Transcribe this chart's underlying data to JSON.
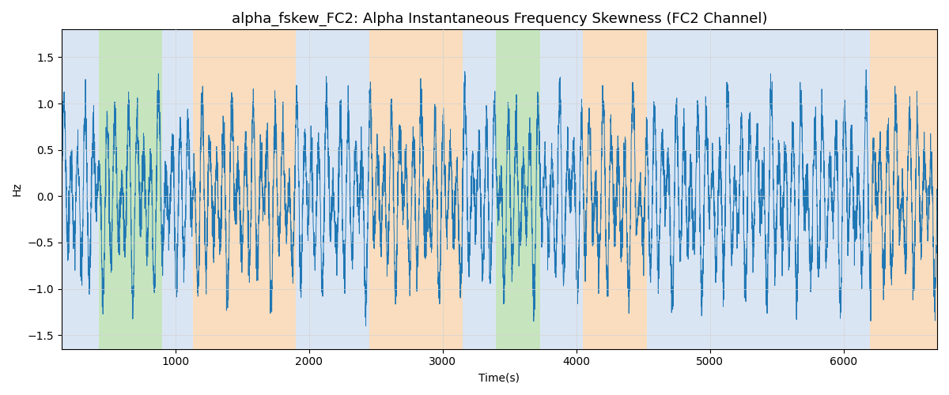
{
  "title": "alpha_fskew_FC2: Alpha Instantaneous Frequency Skewness (FC2 Channel)",
  "xlabel": "Time(s)",
  "ylabel": "Hz",
  "ylim": [
    -1.65,
    1.8
  ],
  "xlim": [
    150,
    6700
  ],
  "line_color": "#1f77b4",
  "line_width": 0.7,
  "background_regions": [
    {
      "xstart": 150,
      "xend": 430,
      "color": "#aec6e8",
      "alpha": 0.45
    },
    {
      "xstart": 430,
      "xend": 900,
      "color": "#98d08a",
      "alpha": 0.55
    },
    {
      "xstart": 900,
      "xend": 1130,
      "color": "#aec6e8",
      "alpha": 0.45
    },
    {
      "xstart": 1130,
      "xend": 1900,
      "color": "#f5c18a",
      "alpha": 0.55
    },
    {
      "xstart": 1900,
      "xend": 2450,
      "color": "#aec6e8",
      "alpha": 0.45
    },
    {
      "xstart": 2450,
      "xend": 3150,
      "color": "#f5c18a",
      "alpha": 0.55
    },
    {
      "xstart": 3150,
      "xend": 3400,
      "color": "#aec6e8",
      "alpha": 0.45
    },
    {
      "xstart": 3400,
      "xend": 3730,
      "color": "#98d08a",
      "alpha": 0.55
    },
    {
      "xstart": 3730,
      "xend": 4050,
      "color": "#aec6e8",
      "alpha": 0.45
    },
    {
      "xstart": 4050,
      "xend": 4530,
      "color": "#f5c18a",
      "alpha": 0.55
    },
    {
      "xstart": 4530,
      "xend": 4800,
      "color": "#aec6e8",
      "alpha": 0.45
    },
    {
      "xstart": 4800,
      "xend": 5900,
      "color": "#aec6e8",
      "alpha": 0.45
    },
    {
      "xstart": 5900,
      "xend": 6200,
      "color": "#aec6e8",
      "alpha": 0.45
    },
    {
      "xstart": 6200,
      "xend": 6700,
      "color": "#f5c18a",
      "alpha": 0.55
    }
  ],
  "seed": 2023,
  "n_points": 6500,
  "figsize": [
    12,
    5
  ],
  "dpi": 100,
  "title_fontsize": 13
}
